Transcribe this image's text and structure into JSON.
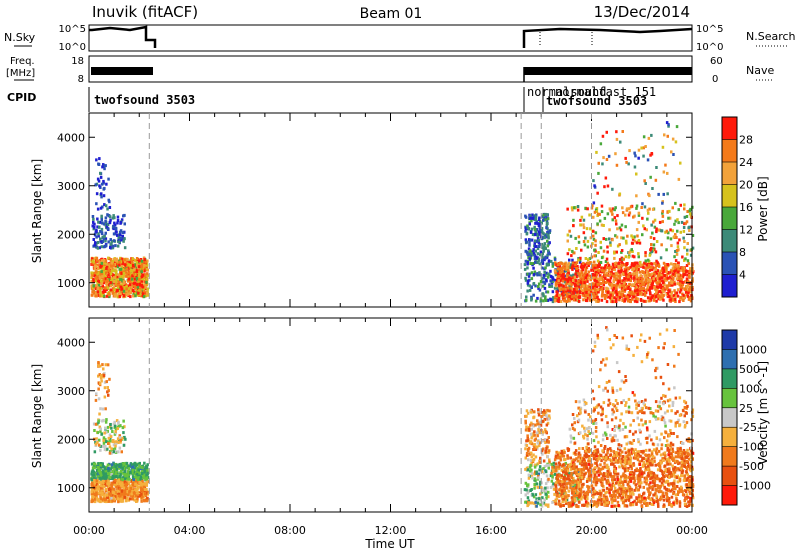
{
  "header": {
    "station": "Inuvik (fitACF)",
    "beam": "Beam 01",
    "date": "13/Dec/2014"
  },
  "panels": {
    "nsky_label": "N.Sky",
    "nsky_ticks": [
      "10^5",
      "10^0"
    ],
    "nsearch_label": "N.Search",
    "nsearch_ticks": [
      "10^5",
      "10^0"
    ],
    "freq_label": "Freq.",
    "freq_unit": "[MHz]",
    "freq_ticks": [
      "18",
      "8"
    ],
    "nave_label": "Nave",
    "nave_ticks": [
      "60",
      "0"
    ],
    "cpid_label": "CPID",
    "cpid_segments": [
      {
        "label": "twofsound 3503"
      },
      {
        "label": "normalsound"
      },
      {
        "label": "normalfast 151"
      },
      {
        "label": "twofsound 3503"
      }
    ]
  },
  "chart_data": {
    "type": "heatmap",
    "xlabel": "Time UT",
    "x_ticks": [
      "00:00",
      "04:00",
      "08:00",
      "12:00",
      "16:00",
      "20:00",
      "00:00"
    ],
    "xlim_hours": [
      0,
      24
    ],
    "ylabel": "Slant Range [km]",
    "y_ticks": [
      1000,
      2000,
      3000,
      4000
    ],
    "ylim": [
      500,
      4500
    ],
    "data_gaps_hours": [
      [
        2.4,
        17.2
      ]
    ],
    "cpid_change_hours": [
      2.4,
      17.2,
      18.0,
      20.0
    ],
    "power": {
      "colorbar_label": "Power [dB]",
      "colorbar_ticks": [
        4,
        8,
        12,
        16,
        20,
        24,
        28
      ],
      "colors": [
        "#1f1fd0",
        "#2a52b5",
        "#3c8a78",
        "#49a83a",
        "#d6c21d",
        "#f2a23a",
        "#f47a1a",
        "#ff1a0a"
      ]
    },
    "velocity": {
      "colorbar_label": "Velocity [m s^-1]",
      "colorbar_ticks": [
        1000,
        500,
        100,
        25,
        -25,
        -100,
        -500,
        -1000
      ],
      "colors": [
        "#1f3aa8",
        "#2e6fb0",
        "#2f9a63",
        "#67c33d",
        "#c8c8c8",
        "#f5b03d",
        "#f07a1c",
        "#e85010",
        "#ff1a0a"
      ]
    }
  }
}
